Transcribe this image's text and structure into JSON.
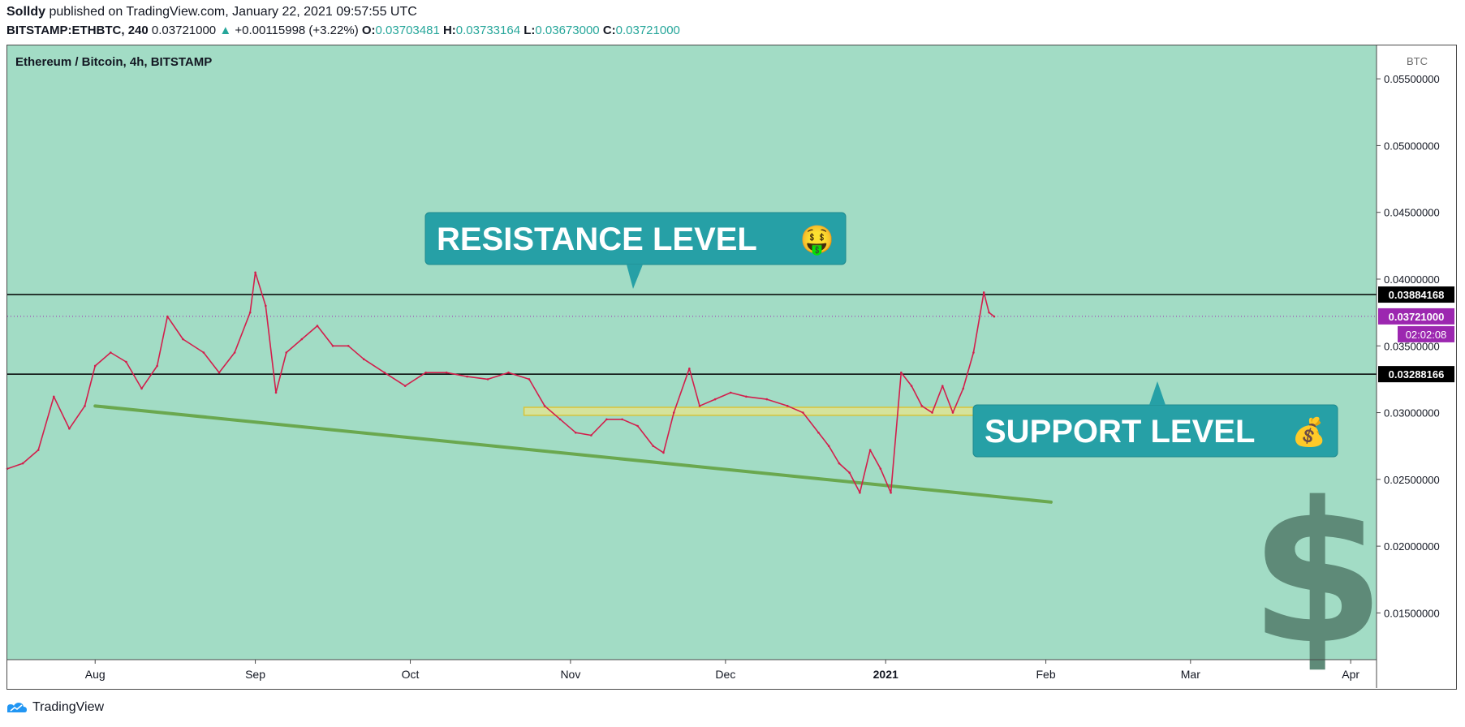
{
  "header": {
    "author": "Solldy",
    "published_text": "published on TradingView.com, January 22, 2021 09:57:55 UTC",
    "symbol": "BITSTAMP:ETHBTC, 240",
    "last": "0.03721000",
    "change_arrow": "▲",
    "change": "+0.00115998 (+3.22%)",
    "o_label": "O:",
    "o_value": "0.03703481",
    "h_label": "H:",
    "h_value": "0.03733164",
    "l_label": "L:",
    "l_value": "0.03673000",
    "c_label": "C:",
    "c_value": "0.03721000"
  },
  "footer": {
    "brand": "TradingView",
    "logo_icon": "tradingview-logo-icon"
  },
  "colors": {
    "background": "#a2dcc5",
    "candle": "#d21f4c",
    "trendline": "#6aa84f",
    "level_line": "#000000",
    "callout": "#26a0a6",
    "price_tag": "#9c27b0",
    "dollar": "#5e8a78",
    "zone": "#ffe97a"
  },
  "chart_data": {
    "type": "line",
    "title": "Ethereum / Bitcoin, 4h, BITSTAMP",
    "currency_label": "BTC",
    "x_tick_labels": [
      "Aug",
      "Sep",
      "Oct",
      "Nov",
      "Dec",
      "2021",
      "Feb",
      "Mar",
      "Apr"
    ],
    "y_tick_labels": [
      "0.05500000",
      "0.05000000",
      "0.04500000",
      "0.04000000",
      "0.03500000",
      "0.03000000",
      "0.02500000",
      "0.02000000",
      "0.01500000"
    ],
    "ylim": [
      0.0115,
      0.0575
    ],
    "xlim": [
      "2020-07-15",
      "2021-04-06"
    ],
    "price_series": {
      "name": "ETHBTC",
      "points": [
        [
          "2020-07-15",
          0.0258
        ],
        [
          "2020-07-18",
          0.0262
        ],
        [
          "2020-07-21",
          0.0272
        ],
        [
          "2020-07-24",
          0.0312
        ],
        [
          "2020-07-27",
          0.0288
        ],
        [
          "2020-07-30",
          0.0305
        ],
        [
          "2020-08-01",
          0.0335
        ],
        [
          "2020-08-04",
          0.0345
        ],
        [
          "2020-08-07",
          0.0338
        ],
        [
          "2020-08-10",
          0.0318
        ],
        [
          "2020-08-13",
          0.0335
        ],
        [
          "2020-08-15",
          0.0372
        ],
        [
          "2020-08-18",
          0.0355
        ],
        [
          "2020-08-22",
          0.0345
        ],
        [
          "2020-08-25",
          0.033
        ],
        [
          "2020-08-28",
          0.0345
        ],
        [
          "2020-08-31",
          0.0375
        ],
        [
          "2020-09-01",
          0.0405
        ],
        [
          "2020-09-03",
          0.038
        ],
        [
          "2020-09-05",
          0.0315
        ],
        [
          "2020-09-07",
          0.0345
        ],
        [
          "2020-09-10",
          0.0355
        ],
        [
          "2020-09-13",
          0.0365
        ],
        [
          "2020-09-16",
          0.035
        ],
        [
          "2020-09-19",
          0.035
        ],
        [
          "2020-09-22",
          0.034
        ],
        [
          "2020-09-26",
          0.033
        ],
        [
          "2020-09-30",
          0.032
        ],
        [
          "2020-10-04",
          0.033
        ],
        [
          "2020-10-08",
          0.033
        ],
        [
          "2020-10-12",
          0.0327
        ],
        [
          "2020-10-16",
          0.0325
        ],
        [
          "2020-10-20",
          0.033
        ],
        [
          "2020-10-24",
          0.0325
        ],
        [
          "2020-10-27",
          0.0305
        ],
        [
          "2020-10-30",
          0.0295
        ],
        [
          "2020-11-02",
          0.0285
        ],
        [
          "2020-11-05",
          0.0283
        ],
        [
          "2020-11-08",
          0.0295
        ],
        [
          "2020-11-11",
          0.0295
        ],
        [
          "2020-11-14",
          0.029
        ],
        [
          "2020-11-17",
          0.0275
        ],
        [
          "2020-11-19",
          0.027
        ],
        [
          "2020-11-21",
          0.03
        ],
        [
          "2020-11-24",
          0.0333
        ],
        [
          "2020-11-26",
          0.0305
        ],
        [
          "2020-11-29",
          0.031
        ],
        [
          "2020-12-02",
          0.0315
        ],
        [
          "2020-12-05",
          0.0312
        ],
        [
          "2020-12-09",
          0.031
        ],
        [
          "2020-12-13",
          0.0305
        ],
        [
          "2020-12-16",
          0.03
        ],
        [
          "2020-12-19",
          0.0285
        ],
        [
          "2020-12-21",
          0.0275
        ],
        [
          "2020-12-23",
          0.0262
        ],
        [
          "2020-12-25",
          0.0255
        ],
        [
          "2020-12-27",
          0.024
        ],
        [
          "2020-12-29",
          0.0272
        ],
        [
          "2020-12-31",
          0.0258
        ],
        [
          "2021-01-02",
          0.024
        ],
        [
          "2021-01-04",
          0.033
        ],
        [
          "2021-01-06",
          0.032
        ],
        [
          "2021-01-08",
          0.0305
        ],
        [
          "2021-01-10",
          0.03
        ],
        [
          "2021-01-12",
          0.032
        ],
        [
          "2021-01-14",
          0.03
        ],
        [
          "2021-01-16",
          0.0318
        ],
        [
          "2021-01-18",
          0.0345
        ],
        [
          "2021-01-20",
          0.039
        ],
        [
          "2021-01-21",
          0.0375
        ],
        [
          "2021-01-22",
          0.0372
        ]
      ]
    },
    "resistance_level": {
      "value": 0.03884168,
      "label": "0.03884168"
    },
    "support_level": {
      "value": 0.03288166,
      "label": "0.03288166"
    },
    "current_price": {
      "value": 0.03721,
      "label": "0.03721000",
      "countdown": "02:02:08"
    },
    "trendline": {
      "start": [
        "2020-08-01",
        0.0305
      ],
      "end": [
        "2021-02-02",
        0.0233
      ]
    },
    "support_zone": {
      "x_start": "2020-10-23",
      "x_end": "2021-01-24",
      "y_low": 0.0298,
      "y_high": 0.0304
    },
    "annotations": {
      "resistance_text": "RESISTANCE LEVEL",
      "resistance_emoji": "🤑",
      "support_text": "SUPPORT LEVEL",
      "support_emoji": "💰",
      "dollar_sign": "$"
    }
  }
}
